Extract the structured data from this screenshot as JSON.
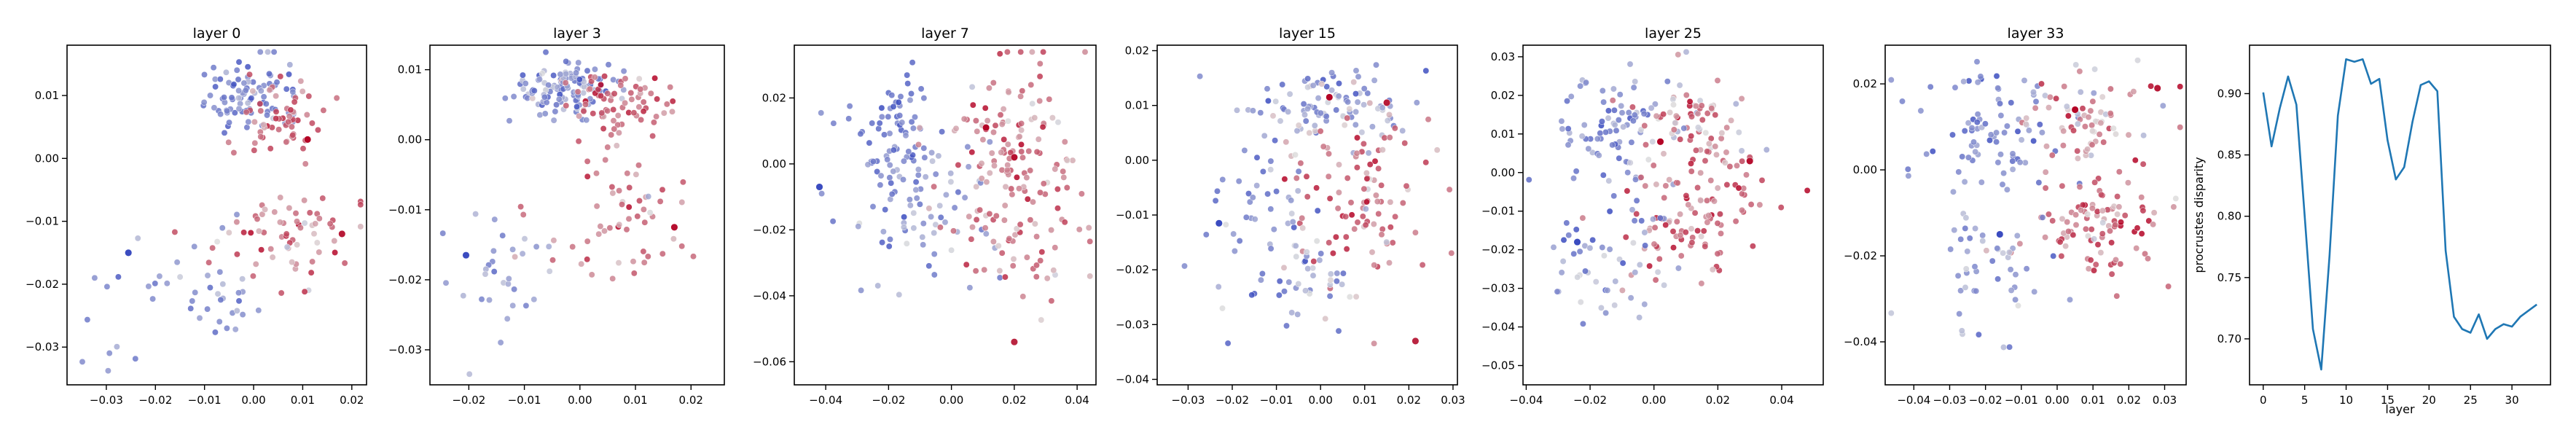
{
  "colors": {
    "cold": "#3b4cc0",
    "neutral": "#dddddd",
    "hot": "#b40426",
    "line": "#1f77b4"
  },
  "chart_data": [
    {
      "type": "scatter",
      "title": "layer 0",
      "xlim": [
        -0.038,
        0.023
      ],
      "ylim": [
        -0.036,
        0.018
      ],
      "xticks": [
        -0.03,
        -0.02,
        -0.01,
        0.0,
        0.01,
        0.02
      ],
      "xtick_labels": [
        "−0.03",
        "−0.02",
        "−0.01",
        "0.00",
        "0.01",
        "0.02"
      ],
      "yticks": [
        -0.03,
        -0.02,
        -0.01,
        0.0,
        0.01
      ],
      "ytick_labels": [
        "−0.03",
        "−0.02",
        "−0.01",
        "0.00",
        "0.01"
      ],
      "clusters": [
        {
          "cx": -0.001,
          "cy": 0.01,
          "sx": 0.0045,
          "sy": 0.003,
          "n": 90,
          "v": -0.65,
          "vs": 0.18
        },
        {
          "cx": 0.006,
          "cy": 0.006,
          "sx": 0.004,
          "sy": 0.003,
          "n": 60,
          "v": 0.55,
          "vs": 0.22
        },
        {
          "cx": 0.006,
          "cy": -0.012,
          "sx": 0.007,
          "sy": 0.004,
          "n": 65,
          "v": 0.45,
          "vs": 0.25
        },
        {
          "cx": -0.01,
          "cy": -0.02,
          "sx": 0.007,
          "sy": 0.006,
          "n": 35,
          "v": -0.5,
          "vs": 0.2
        },
        {
          "cx": -0.028,
          "cy": -0.024,
          "sx": 0.004,
          "sy": 0.006,
          "n": 10,
          "v": -0.6,
          "vs": 0.15
        }
      ],
      "highlight": [
        {
          "x": -0.0255,
          "y": -0.015,
          "v": -1.0
        },
        {
          "x": 0.011,
          "y": 0.003,
          "v": 1.0
        },
        {
          "x": 0.018,
          "y": -0.012,
          "v": 0.9
        }
      ]
    },
    {
      "type": "scatter",
      "title": "layer 3",
      "xlim": [
        -0.027,
        0.026
      ],
      "ylim": [
        -0.035,
        0.0135
      ],
      "xticks": [
        -0.02,
        -0.01,
        0.0,
        0.01,
        0.02
      ],
      "xtick_labels": [
        "−0.02",
        "−0.01",
        "0.00",
        "0.01",
        "0.02"
      ],
      "yticks": [
        -0.03,
        -0.02,
        -0.01,
        0.0,
        0.01
      ],
      "ytick_labels": [
        "−0.03",
        "−0.02",
        "−0.01",
        "0.00",
        "0.01"
      ],
      "clusters": [
        {
          "cx": -0.003,
          "cy": 0.0075,
          "sx": 0.005,
          "sy": 0.002,
          "n": 120,
          "v": -0.55,
          "vs": 0.25
        },
        {
          "cx": 0.007,
          "cy": 0.0055,
          "sx": 0.005,
          "sy": 0.002,
          "n": 70,
          "v": 0.55,
          "vs": 0.22
        },
        {
          "cx": 0.004,
          "cy": -0.012,
          "sx": 0.008,
          "sy": 0.005,
          "n": 60,
          "v": 0.45,
          "vs": 0.25
        },
        {
          "cx": -0.014,
          "cy": -0.02,
          "sx": 0.006,
          "sy": 0.006,
          "n": 30,
          "v": -0.5,
          "vs": 0.2
        }
      ],
      "highlight": [
        {
          "x": -0.0205,
          "y": -0.0165,
          "v": -1.0
        },
        {
          "x": 0.017,
          "y": -0.0125,
          "v": 0.95
        }
      ]
    },
    {
      "type": "scatter",
      "title": "layer 7",
      "xlim": [
        -0.05,
        0.046
      ],
      "ylim": [
        -0.067,
        0.036
      ],
      "xticks": [
        -0.04,
        -0.02,
        0.0,
        0.02,
        0.04
      ],
      "xtick_labels": [
        "−0.04",
        "−0.02",
        "0.00",
        "0.02",
        "0.04"
      ],
      "yticks": [
        -0.06,
        -0.04,
        -0.02,
        0.0,
        0.02
      ],
      "ytick_labels": [
        "−0.06",
        "−0.04",
        "−0.02",
        "0.00",
        "0.02"
      ],
      "clusters": [
        {
          "cx": -0.018,
          "cy": 0.012,
          "sx": 0.007,
          "sy": 0.009,
          "n": 60,
          "v": -0.7,
          "vs": 0.15
        },
        {
          "cx": -0.01,
          "cy": -0.012,
          "sx": 0.012,
          "sy": 0.012,
          "n": 80,
          "v": -0.45,
          "vs": 0.25
        },
        {
          "cx": 0.018,
          "cy": 0.005,
          "sx": 0.012,
          "sy": 0.014,
          "n": 110,
          "v": 0.5,
          "vs": 0.25
        },
        {
          "cx": 0.02,
          "cy": -0.022,
          "sx": 0.013,
          "sy": 0.011,
          "n": 60,
          "v": 0.45,
          "vs": 0.25
        }
      ],
      "highlight": [
        {
          "x": -0.042,
          "y": -0.007,
          "v": -1.0
        },
        {
          "x": 0.011,
          "y": 0.011,
          "v": 1.0
        },
        {
          "x": 0.02,
          "y": 0.002,
          "v": 0.95
        },
        {
          "x": 0.02,
          "y": -0.054,
          "v": 0.85
        }
      ]
    },
    {
      "type": "scatter",
      "title": "layer 15",
      "xlim": [
        -0.037,
        0.031
      ],
      "ylim": [
        -0.041,
        0.021
      ],
      "xticks": [
        -0.03,
        -0.02,
        -0.01,
        0.0,
        0.01,
        0.02,
        0.03
      ],
      "xtick_labels": [
        "−0.03",
        "−0.02",
        "−0.01",
        "0.00",
        "0.01",
        "0.02",
        "0.03"
      ],
      "yticks": [
        -0.04,
        -0.03,
        -0.02,
        -0.01,
        0.0,
        0.01,
        0.02
      ],
      "ytick_labels": [
        "−0.04",
        "−0.03",
        "−0.02",
        "−0.01",
        "0.00",
        "0.01",
        "0.02"
      ],
      "clusters": [
        {
          "cx": 0.0,
          "cy": 0.01,
          "sx": 0.009,
          "sy": 0.004,
          "n": 100,
          "v": -0.45,
          "vs": 0.3
        },
        {
          "cx": 0.01,
          "cy": -0.006,
          "sx": 0.008,
          "sy": 0.007,
          "n": 90,
          "v": 0.55,
          "vs": 0.25
        },
        {
          "cx": -0.015,
          "cy": -0.01,
          "sx": 0.009,
          "sy": 0.008,
          "n": 50,
          "v": -0.55,
          "vs": 0.2
        },
        {
          "cx": -0.002,
          "cy": -0.022,
          "sx": 0.009,
          "sy": 0.006,
          "n": 40,
          "v": -0.3,
          "vs": 0.35
        }
      ],
      "highlight": [
        {
          "x": -0.023,
          "y": -0.0115,
          "v": -1.0
        },
        {
          "x": 0.002,
          "y": 0.0115,
          "v": 1.0
        },
        {
          "x": 0.015,
          "y": 0.0105,
          "v": 0.9
        },
        {
          "x": 0.0215,
          "y": -0.033,
          "v": 0.85
        }
      ]
    },
    {
      "type": "scatter",
      "title": "layer 25",
      "xlim": [
        -0.041,
        0.053
      ],
      "ylim": [
        -0.055,
        0.033
      ],
      "xticks": [
        -0.04,
        -0.02,
        0.0,
        0.02,
        0.04
      ],
      "xtick_labels": [
        "−0.04",
        "−0.02",
        "0.00",
        "0.02",
        "0.04"
      ],
      "yticks": [
        -0.05,
        -0.04,
        -0.03,
        -0.02,
        -0.01,
        0.0,
        0.01,
        0.02,
        0.03
      ],
      "ytick_labels": [
        "−0.05",
        "−0.04",
        "−0.03",
        "−0.02",
        "−0.01",
        "0.00",
        "0.01",
        "0.02",
        "0.03"
      ],
      "clusters": [
        {
          "cx": -0.015,
          "cy": 0.01,
          "sx": 0.01,
          "sy": 0.008,
          "n": 80,
          "v": -0.6,
          "vs": 0.2
        },
        {
          "cx": 0.01,
          "cy": 0.012,
          "sx": 0.01,
          "sy": 0.007,
          "n": 80,
          "v": 0.3,
          "vs": 0.35
        },
        {
          "cx": 0.015,
          "cy": -0.01,
          "sx": 0.012,
          "sy": 0.008,
          "n": 100,
          "v": 0.55,
          "vs": 0.25
        },
        {
          "cx": -0.015,
          "cy": -0.025,
          "sx": 0.01,
          "sy": 0.01,
          "n": 50,
          "v": -0.45,
          "vs": 0.25
        }
      ],
      "highlight": [
        {
          "x": -0.024,
          "y": -0.018,
          "v": -1.0
        },
        {
          "x": 0.002,
          "y": 0.008,
          "v": 1.0
        },
        {
          "x": 0.03,
          "y": 0.003,
          "v": 0.95
        }
      ]
    },
    {
      "type": "scatter",
      "title": "layer 33",
      "xlim": [
        -0.048,
        0.036
      ],
      "ylim": [
        -0.05,
        0.029
      ],
      "xticks": [
        -0.04,
        -0.03,
        -0.02,
        -0.01,
        0.0,
        0.01,
        0.02,
        0.03
      ],
      "xtick_labels": [
        "−0.04",
        "−0.03",
        "−0.02",
        "−0.01",
        "0.00",
        "0.01",
        "0.02",
        "0.03"
      ],
      "yticks": [
        -0.04,
        -0.02,
        0.0,
        0.02
      ],
      "ytick_labels": [
        "−0.04",
        "−0.02",
        "0.00",
        "0.02"
      ],
      "clusters": [
        {
          "cx": -0.018,
          "cy": 0.008,
          "sx": 0.009,
          "sy": 0.008,
          "n": 80,
          "v": -0.6,
          "vs": 0.2
        },
        {
          "cx": 0.008,
          "cy": 0.012,
          "sx": 0.01,
          "sy": 0.006,
          "n": 70,
          "v": 0.3,
          "vs": 0.35
        },
        {
          "cx": 0.012,
          "cy": -0.012,
          "sx": 0.009,
          "sy": 0.006,
          "n": 100,
          "v": 0.55,
          "vs": 0.25
        },
        {
          "cx": -0.02,
          "cy": -0.022,
          "sx": 0.01,
          "sy": 0.008,
          "n": 50,
          "v": -0.45,
          "vs": 0.25
        }
      ],
      "highlight": [
        {
          "x": -0.016,
          "y": -0.015,
          "v": -1.0
        },
        {
          "x": 0.005,
          "y": 0.014,
          "v": 1.0
        },
        {
          "x": 0.028,
          "y": 0.019,
          "v": 0.9
        }
      ]
    },
    {
      "type": "line",
      "xlim": [
        -1.65,
        34.65
      ],
      "ylim": [
        0.6625,
        0.9395
      ],
      "xlabel": "layer",
      "ylabel": "procrustes disparity",
      "xticks": [
        0,
        5,
        10,
        15,
        20,
        25,
        30
      ],
      "xtick_labels": [
        "0",
        "5",
        "10",
        "15",
        "20",
        "25",
        "30"
      ],
      "yticks": [
        0.7,
        0.75,
        0.8,
        0.85,
        0.9
      ],
      "ytick_labels": [
        "0.70",
        "0.75",
        "0.80",
        "0.85",
        "0.90"
      ],
      "x": [
        0,
        1,
        2,
        3,
        4,
        5,
        6,
        7,
        8,
        9,
        10,
        11,
        12,
        13,
        14,
        15,
        16,
        17,
        18,
        19,
        20,
        21,
        22,
        23,
        24,
        25,
        26,
        27,
        28,
        29,
        30,
        31,
        32,
        33
      ],
      "y": [
        0.901,
        0.857,
        0.888,
        0.914,
        0.891,
        0.8,
        0.708,
        0.675,
        0.768,
        0.882,
        0.928,
        0.926,
        0.928,
        0.908,
        0.912,
        0.862,
        0.83,
        0.84,
        0.877,
        0.907,
        0.91,
        0.902,
        0.772,
        0.718,
        0.708,
        0.705,
        0.72,
        0.7,
        0.708,
        0.712,
        0.71,
        0.718,
        0.723,
        0.728
      ]
    }
  ]
}
